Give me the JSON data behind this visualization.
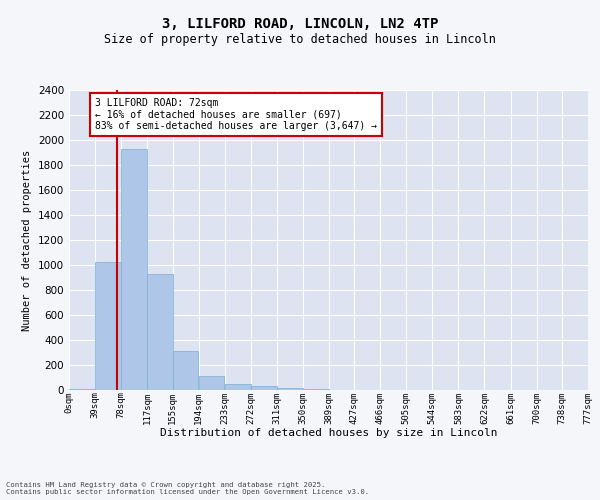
{
  "title1": "3, LILFORD ROAD, LINCOLN, LN2 4TP",
  "title2": "Size of property relative to detached houses in Lincoln",
  "xlabel": "Distribution of detached houses by size in Lincoln",
  "ylabel": "Number of detached properties",
  "bar_color": "#aec6e8",
  "bar_edge_color": "#7bafd4",
  "bg_color": "#dde3f0",
  "grid_color": "#ffffff",
  "bin_edges": [
    0,
    39,
    78,
    117,
    155,
    194,
    233,
    272,
    311,
    350,
    389,
    427,
    466,
    505,
    544,
    583,
    622,
    661,
    700,
    738,
    777
  ],
  "bin_labels": [
    "0sqm",
    "39sqm",
    "78sqm",
    "117sqm",
    "155sqm",
    "194sqm",
    "233sqm",
    "272sqm",
    "311sqm",
    "350sqm",
    "389sqm",
    "427sqm",
    "466sqm",
    "505sqm",
    "544sqm",
    "583sqm",
    "622sqm",
    "661sqm",
    "700sqm",
    "738sqm",
    "777sqm"
  ],
  "bar_heights": [
    10,
    1025,
    1925,
    930,
    315,
    110,
    45,
    30,
    15,
    5,
    2,
    1,
    0,
    0,
    0,
    0,
    0,
    0,
    0,
    0
  ],
  "property_size": 72,
  "vline_color": "#cc0000",
  "annotation_text": "3 LILFORD ROAD: 72sqm\n← 16% of detached houses are smaller (697)\n83% of semi-detached houses are larger (3,647) →",
  "annotation_box_color": "#cc0000",
  "ylim": [
    0,
    2400
  ],
  "yticks": [
    0,
    200,
    400,
    600,
    800,
    1000,
    1200,
    1400,
    1600,
    1800,
    2000,
    2200,
    2400
  ],
  "footer1": "Contains HM Land Registry data © Crown copyright and database right 2025.",
  "footer2": "Contains public sector information licensed under the Open Government Licence v3.0.",
  "fig_bg_color": "#f5f6fa"
}
